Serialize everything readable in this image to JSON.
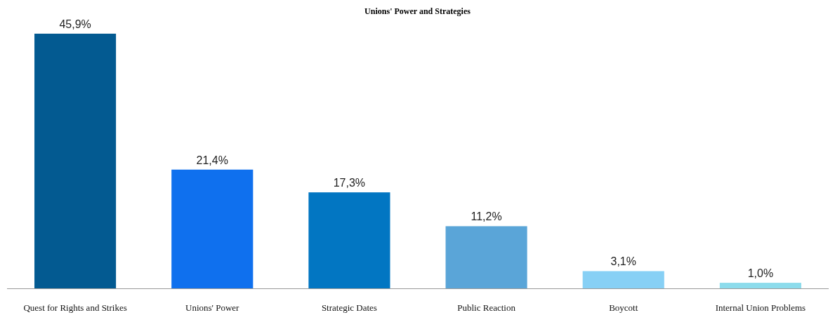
{
  "chart_data": {
    "type": "bar",
    "title": "Unions' Power and Strategies",
    "categories": [
      "Quest for Rights and Strikes",
      "Unions' Power",
      "Strategic Dates",
      "Public Reaction",
      "Boycott",
      "Internal Union Problems"
    ],
    "values": [
      45.9,
      21.4,
      17.3,
      11.2,
      3.1,
      1.0
    ],
    "value_labels": [
      "45,9%",
      "21,4%",
      "17,3%",
      "11,2%",
      "3,1%",
      "1,0%"
    ],
    "colors": [
      "#035a91",
      "#0f70ee",
      "#0276c2",
      "#5aa5d8",
      "#87d0f5",
      "#8ddcec"
    ],
    "grid": false
  }
}
